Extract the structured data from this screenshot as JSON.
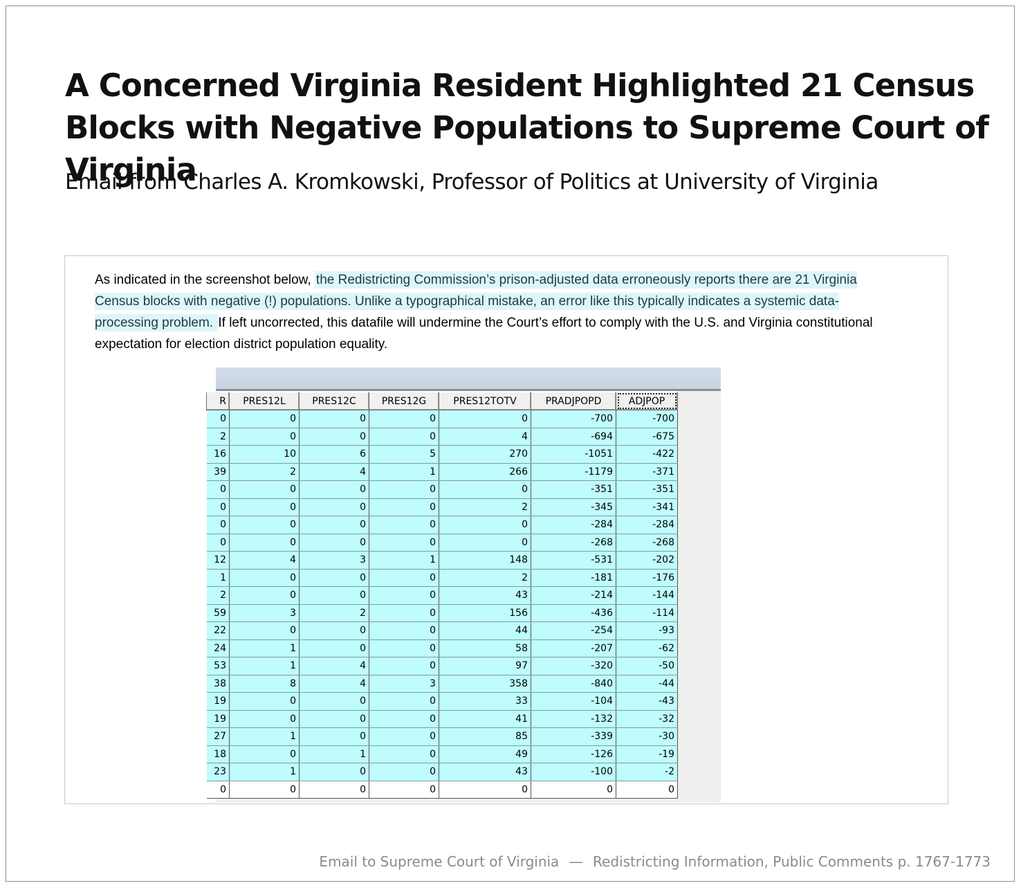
{
  "title": "A Concerned Virginia Resident Highlighted 21 Census Blocks with Negative Populations to Supreme Court of Virginia",
  "subtitle": "Email from Charles A. Kromkowski, Professor of Politics at University of Virginia",
  "email": {
    "intro": "As indicated in the screenshot below, ",
    "highlight": "the Redistricting Commission’s prison-adjusted data erroneously reports there are 21 Virginia Census blocks with negative (!) populations. Unlike a typographical mistake, an error like this typically indicates a systemic data-processing problem. ",
    "rest": " If left uncorrected, this datafile will undermine the Court’s effort to comply with the U.S. and Virginia constitutional expectation for election district population equality."
  },
  "colors": {
    "highlight_bg": "#ddf6fb",
    "cell_bg": "#bffcfd",
    "accent_text": "#1f3a44"
  },
  "table": {
    "columns": [
      "R",
      "PRES12L",
      "PRES12C",
      "PRES12G",
      "PRES12TOTV",
      "PRADJPOPD",
      "ADJPOP"
    ],
    "selected_column": "ADJPOP",
    "rows": [
      [
        "0",
        "0",
        "0",
        "0",
        "0",
        "-700",
        "-700"
      ],
      [
        "2",
        "0",
        "0",
        "0",
        "4",
        "-694",
        "-675"
      ],
      [
        "16",
        "10",
        "6",
        "5",
        "270",
        "-1051",
        "-422"
      ],
      [
        "39",
        "2",
        "4",
        "1",
        "266",
        "-1179",
        "-371"
      ],
      [
        "0",
        "0",
        "0",
        "0",
        "0",
        "-351",
        "-351"
      ],
      [
        "0",
        "0",
        "0",
        "0",
        "2",
        "-345",
        "-341"
      ],
      [
        "0",
        "0",
        "0",
        "0",
        "0",
        "-284",
        "-284"
      ],
      [
        "0",
        "0",
        "0",
        "0",
        "0",
        "-268",
        "-268"
      ],
      [
        "12",
        "4",
        "3",
        "1",
        "148",
        "-531",
        "-202"
      ],
      [
        "1",
        "0",
        "0",
        "0",
        "2",
        "-181",
        "-176"
      ],
      [
        "2",
        "0",
        "0",
        "0",
        "43",
        "-214",
        "-144"
      ],
      [
        "59",
        "3",
        "2",
        "0",
        "156",
        "-436",
        "-114"
      ],
      [
        "22",
        "0",
        "0",
        "0",
        "44",
        "-254",
        "-93"
      ],
      [
        "24",
        "1",
        "0",
        "0",
        "58",
        "-207",
        "-62"
      ],
      [
        "53",
        "1",
        "4",
        "0",
        "97",
        "-320",
        "-50"
      ],
      [
        "38",
        "8",
        "4",
        "3",
        "358",
        "-840",
        "-44"
      ],
      [
        "19",
        "0",
        "0",
        "0",
        "33",
        "-104",
        "-43"
      ],
      [
        "19",
        "0",
        "0",
        "0",
        "41",
        "-132",
        "-32"
      ],
      [
        "27",
        "1",
        "0",
        "0",
        "85",
        "-339",
        "-30"
      ],
      [
        "18",
        "0",
        "1",
        "0",
        "49",
        "-126",
        "-19"
      ],
      [
        "23",
        "1",
        "0",
        "0",
        "43",
        "-100",
        "-2"
      ],
      [
        "0",
        "0",
        "0",
        "0",
        "0",
        "0",
        "0"
      ]
    ]
  },
  "footer": {
    "source": "Email to Supreme Court of Virginia",
    "separator": "—",
    "reference": "Redistricting Information, Public Comments p. 1767-1773"
  }
}
